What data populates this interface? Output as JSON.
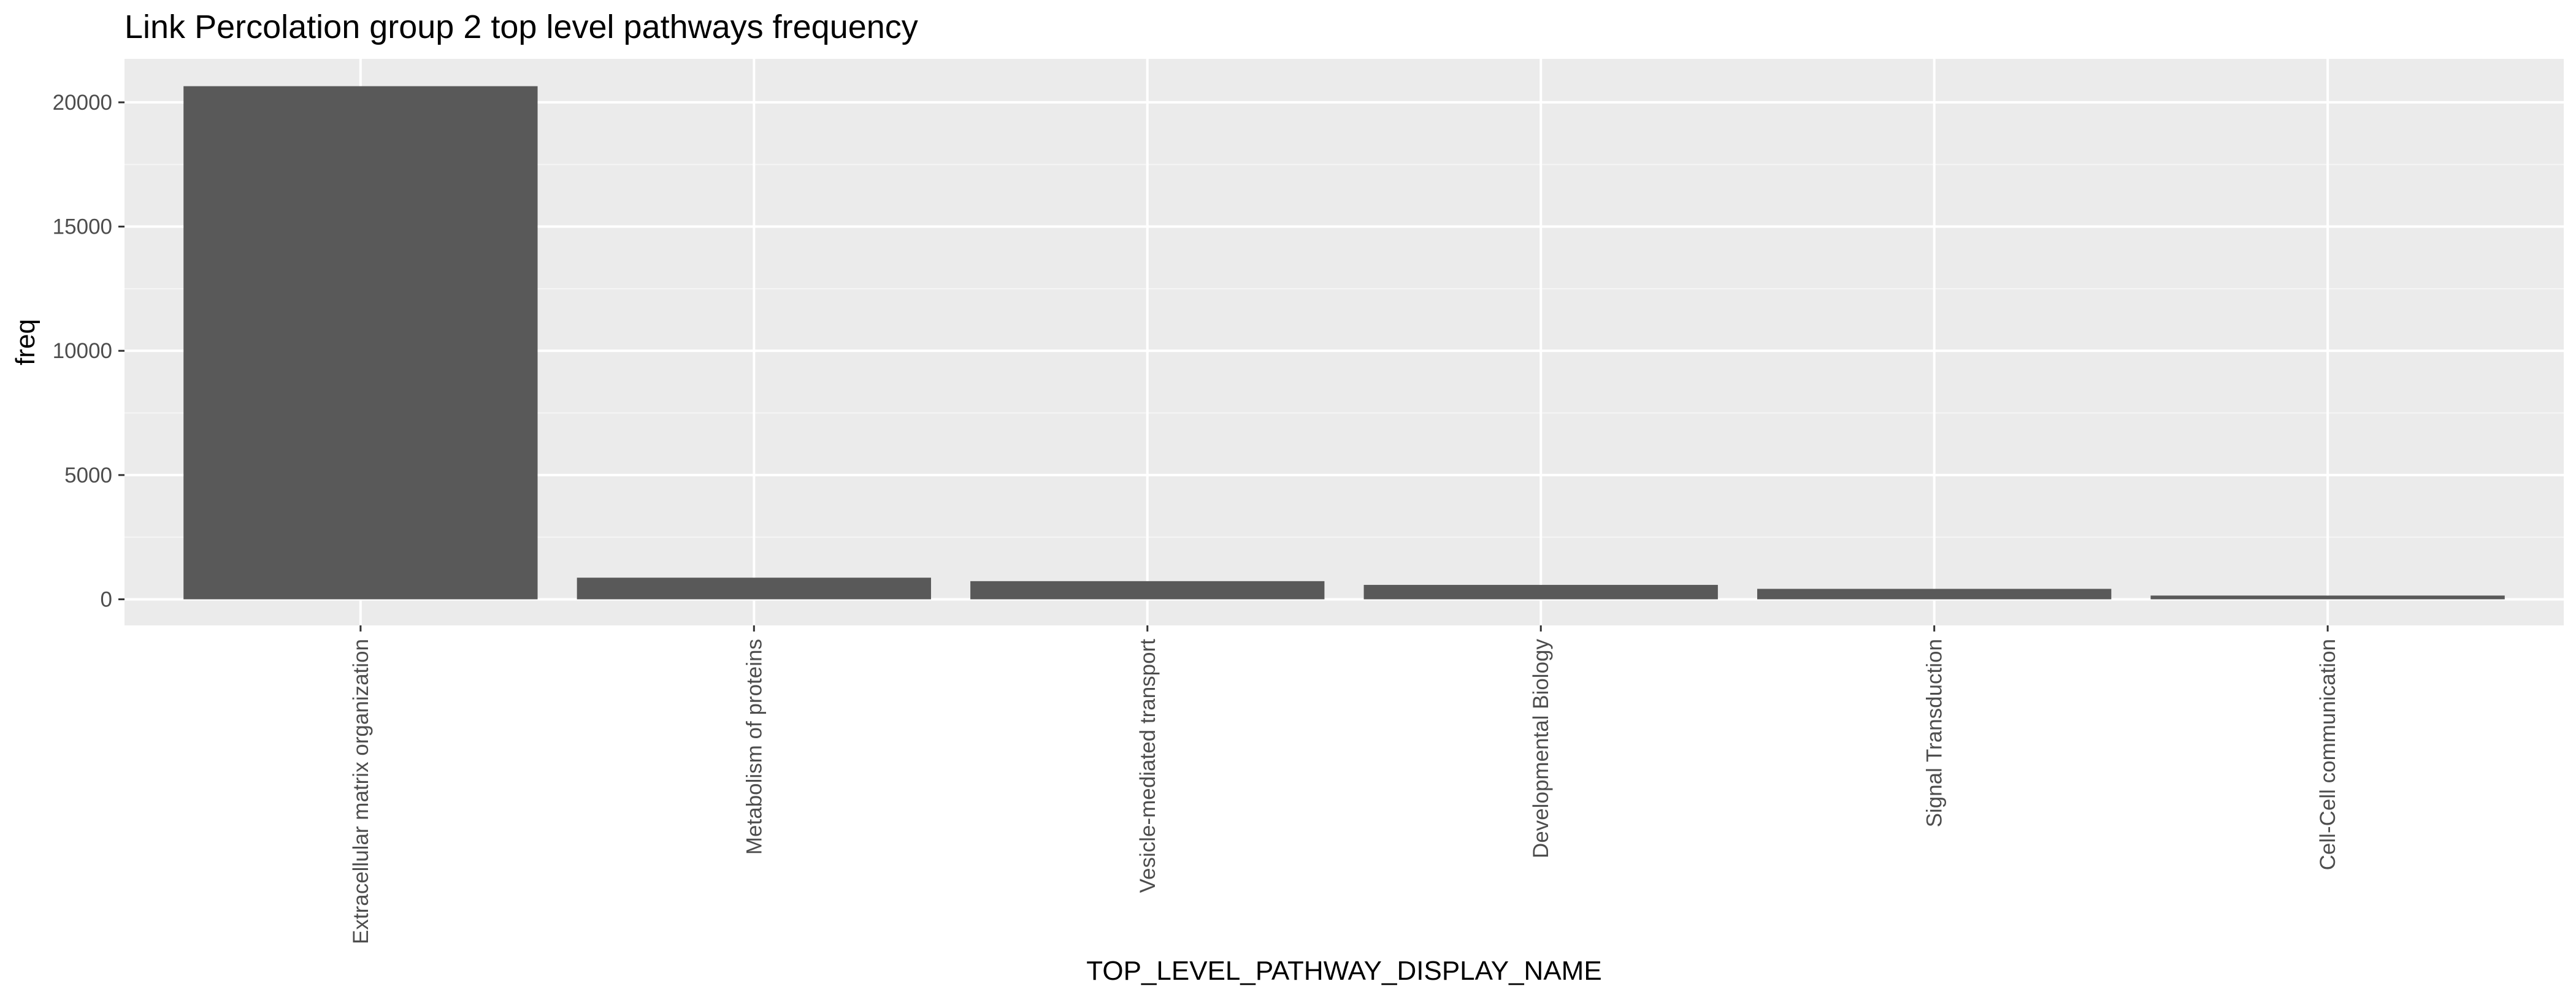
{
  "chart_data": {
    "type": "bar",
    "title": "Link Percolation group 2 top level pathways frequency",
    "xlabel": "TOP_LEVEL_PATHWAY_DISPLAY_NAME",
    "ylabel": "freq",
    "categories": [
      "Extracellular matrix organization",
      "Metabolism of proteins",
      "Vesicle-mediated transport",
      "Developmental Biology",
      "Signal Transduction",
      "Cell-Cell communication"
    ],
    "values": [
      20650,
      870,
      730,
      580,
      420,
      150
    ],
    "ylim": [
      -1050,
      21750
    ],
    "yticks": [
      0,
      5000,
      10000,
      15000,
      20000
    ],
    "grid": true,
    "legend": "none",
    "colors": {
      "bar": "#595959",
      "panel": "#ebebeb",
      "grid_major": "#ffffff",
      "grid_minor": "#f5f5f5",
      "tick": "#333333"
    }
  }
}
